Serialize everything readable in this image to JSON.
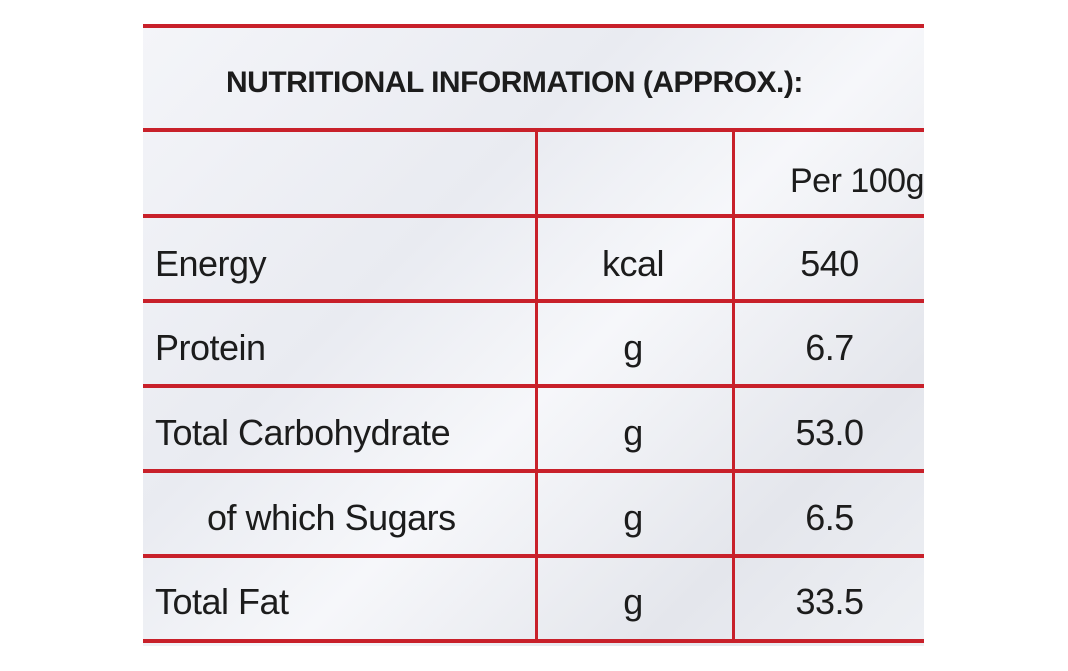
{
  "label": {
    "title": "NUTRITIONAL INFORMATION (APPROX.):",
    "header": {
      "col1": "",
      "col2": "",
      "col3": "Per 100g"
    },
    "rows": [
      {
        "nutrient": "Energy",
        "unit": "kcal",
        "value": "540"
      },
      {
        "nutrient": "Protein",
        "unit": "g",
        "value": "6.7"
      },
      {
        "nutrient": "Total Carbohydrate",
        "unit": "g",
        "value": "53.0"
      },
      {
        "nutrient": "of which Sugars",
        "unit": "g",
        "value": "6.5"
      },
      {
        "nutrient": "Total Fat",
        "unit": "g",
        "value": "33.5"
      }
    ],
    "colors": {
      "rule": "#c8202a",
      "text": "#1c1c1c",
      "background": "#eceef3"
    }
  }
}
